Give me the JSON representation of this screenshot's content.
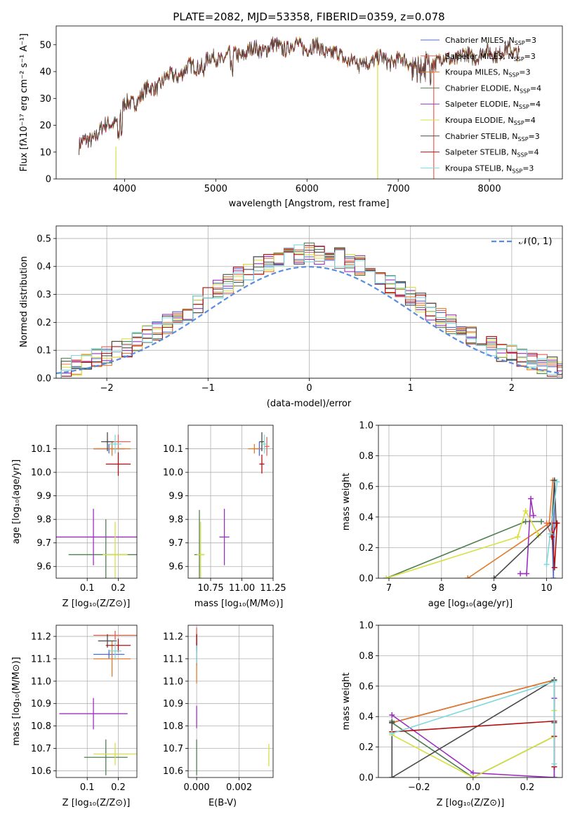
{
  "title": "PLATE=2082, MJD=53358, FIBERID=0359, z=0.078",
  "spectrum": {
    "xlabel": "wavelength [Angstrom, rest frame]",
    "ylabel": "Flux [fλ10⁻¹⁷ erg cm⁻² s⁻¹ A⁻¹]",
    "legend": [
      {
        "label": "Chabrier MILES, N_SSP=3",
        "color": "#4d6bd0"
      },
      {
        "label": "Salpeter MILES, N_SSP=3",
        "color": "#e8604f"
      },
      {
        "label": "Kroupa MILES, N_SSP=3",
        "color": "#e07b2a"
      },
      {
        "label": "Chabrier ELODIE, N_SSP=4",
        "color": "#4f7f4f"
      },
      {
        "label": "Salpeter ELODIE, N_SSP=4",
        "color": "#9b30c0"
      },
      {
        "label": "Kroupa ELODIE, N_SSP=4",
        "color": "#d7e040"
      },
      {
        "label": "Chabrier STELIB, N_SSP=3",
        "color": "#4a4a4a"
      },
      {
        "label": "Salpeter STELIB, N_SSP=4",
        "color": "#b01010"
      },
      {
        "label": "Kroupa STELIB, N_SSP=3",
        "color": "#7fd8dc"
      }
    ]
  },
  "residuals": {
    "xlabel": "(data-model)/error",
    "ylabel": "Normed distribution",
    "legend_label": "𝒩(0, 1)"
  },
  "labels": {
    "Z": "Z [log₁₀(Z/Z⊙)]",
    "age": "age  [log₁₀(age/yr)]",
    "mass": "mass [log₁₀(M/M⊙)]",
    "ebv": "E(B-V)",
    "massweight": "mass weight"
  },
  "chart_data": [
    {
      "type": "line",
      "panel": "spectrum",
      "xlim": [
        3250,
        8800
      ],
      "ylim": [
        0,
        57
      ],
      "xticks": [
        4000,
        5000,
        6000,
        7000,
        8000
      ],
      "yticks": [
        0,
        10,
        20,
        30,
        40,
        50
      ],
      "grid": false,
      "legend_position": "right",
      "continuum_knots": {
        "x": [
          3500,
          3700,
          3900,
          4000,
          4100,
          4300,
          4500,
          4700,
          5000,
          5200,
          5400,
          5600,
          5800,
          6000,
          6200,
          6400,
          6600,
          6800,
          7000,
          7200,
          7400,
          7600,
          7800,
          8000,
          8200,
          8400,
          8600,
          8800
        ],
        "y": [
          12,
          17,
          22,
          27,
          29,
          34,
          38,
          41,
          45,
          46,
          48,
          49,
          49.5,
          49.5,
          48,
          45,
          44,
          44.5,
          44,
          43.5,
          44,
          45,
          46,
          47,
          47.5,
          48,
          47,
          46
        ]
      }
    },
    {
      "type": "bar",
      "panel": "residual-histogram",
      "xlim": [
        -2.5,
        2.5
      ],
      "ylim": [
        0,
        0.545
      ],
      "xticks": [
        -2,
        -1,
        0,
        1,
        2
      ],
      "yticks": [
        0.0,
        0.1,
        0.2,
        0.3,
        0.4,
        0.5
      ],
      "grid": true,
      "bin_width": 0.1,
      "reference_curve": "standard normal pdf",
      "legend_position": "top-right"
    },
    {
      "type": "scatter",
      "panel": "age-vs-Z",
      "xlim": [
        0.0,
        0.26
      ],
      "ylim": [
        9.55,
        10.2
      ],
      "xticks": [
        0.1,
        0.2
      ],
      "yticks": [
        9.6,
        9.7,
        9.8,
        9.9,
        10.0,
        10.1
      ],
      "grid": true,
      "points": [
        {
          "x": 0.17,
          "y": 10.1,
          "xerr": 0.05,
          "yerr": 0.02,
          "color": "#4d6bd0"
        },
        {
          "x": 0.2,
          "y": 10.13,
          "xerr": 0.04,
          "yerr": 0.03,
          "color": "#e8604f"
        },
        {
          "x": 0.18,
          "y": 10.1,
          "xerr": 0.06,
          "yerr": 0.03,
          "color": "#e07b2a"
        },
        {
          "x": 0.16,
          "y": 9.65,
          "xerr": 0.12,
          "yerr": 0.15,
          "color": "#4f7f4f"
        },
        {
          "x": 0.12,
          "y": 9.725,
          "xerr": 0.14,
          "yerr": 0.12,
          "color": "#9b30c0"
        },
        {
          "x": 0.19,
          "y": 9.65,
          "xerr": 0.04,
          "yerr": 0.14,
          "color": "#d7e040"
        },
        {
          "x": 0.165,
          "y": 10.13,
          "xerr": 0.02,
          "yerr": 0.04,
          "color": "#4a4a4a"
        },
        {
          "x": 0.2,
          "y": 10.035,
          "xerr": 0.04,
          "yerr": 0.05,
          "color": "#b01010"
        },
        {
          "x": 0.19,
          "y": 10.12,
          "xerr": 0.02,
          "yerr": 0.04,
          "color": "#7fd8dc"
        }
      ]
    },
    {
      "type": "scatter",
      "panel": "age-vs-mass",
      "xlim": [
        10.57,
        11.25
      ],
      "ylim": [
        9.55,
        10.2
      ],
      "xticks": [
        10.75,
        11.0,
        11.25
      ],
      "yticks": [
        9.6,
        9.7,
        9.8,
        9.9,
        10.0,
        10.1
      ],
      "grid": true,
      "points": [
        {
          "x": 11.14,
          "y": 10.1,
          "xerr": 0.02,
          "yerr": 0.03,
          "color": "#4d6bd0"
        },
        {
          "x": 11.2,
          "y": 10.11,
          "xerr": 0.02,
          "yerr": 0.04,
          "color": "#e8604f"
        },
        {
          "x": 11.1,
          "y": 10.1,
          "xerr": 0.05,
          "yerr": 0.02,
          "color": "#e07b2a"
        },
        {
          "x": 10.66,
          "y": 9.65,
          "xerr": 0.04,
          "yerr": 0.19,
          "color": "#4f7f4f"
        },
        {
          "x": 10.86,
          "y": 9.725,
          "xerr": 0.04,
          "yerr": 0.12,
          "color": "#9b30c0"
        },
        {
          "x": 10.67,
          "y": 9.65,
          "xerr": 0.03,
          "yerr": 0.14,
          "color": "#d7e040"
        },
        {
          "x": 11.16,
          "y": 10.13,
          "xerr": 0.02,
          "yerr": 0.04,
          "color": "#4a4a4a"
        },
        {
          "x": 11.16,
          "y": 10.035,
          "xerr": 0.02,
          "yerr": 0.04,
          "color": "#b01010"
        },
        {
          "x": 11.18,
          "y": 10.12,
          "xerr": 0.02,
          "yerr": 0.04,
          "color": "#7fd8dc"
        }
      ]
    },
    {
      "type": "line",
      "panel": "massweight-vs-age",
      "xlim": [
        6.8,
        10.3
      ],
      "ylim": [
        0,
        1
      ],
      "xticks": [
        7,
        8,
        9,
        10
      ],
      "yticks": [
        0.0,
        0.2,
        0.4,
        0.6,
        0.8,
        1.0
      ],
      "grid": true,
      "series": [
        {
          "color": "#4d6bd0",
          "x": [
            10.1,
            10.13,
            10.15
          ],
          "y": [
            0.36,
            0.0,
            0.64
          ]
        },
        {
          "color": "#e8604f",
          "x": [
            10.0,
            10.1,
            10.15
          ],
          "y": [
            0.36,
            0.27,
            0.64
          ]
        },
        {
          "color": "#e07b2a",
          "x": [
            8.5,
            10.05,
            10.12
          ],
          "y": [
            0.0,
            0.36,
            0.64
          ]
        },
        {
          "color": "#4f7f4f",
          "x": [
            6.95,
            9.6,
            9.9
          ],
          "y": [
            0.0,
            0.37,
            0.37
          ]
        },
        {
          "color": "#9b30c0",
          "x": [
            9.5,
            9.62,
            9.7,
            9.75
          ],
          "y": [
            0.03,
            0.03,
            0.52,
            0.41
          ]
        },
        {
          "color": "#d7e040",
          "x": [
            6.95,
            9.45,
            9.6,
            9.85
          ],
          "y": [
            0.0,
            0.27,
            0.44,
            0.28
          ]
        },
        {
          "color": "#4a4a4a",
          "x": [
            9.0,
            10.1,
            10.15,
            10.18
          ],
          "y": [
            0.0,
            0.36,
            0.64,
            0.36
          ]
        },
        {
          "color": "#b01010",
          "x": [
            10.1,
            10.15,
            10.2,
            10.1
          ],
          "y": [
            0.36,
            0.07,
            0.36,
            0.27
          ]
        },
        {
          "color": "#7fd8dc",
          "x": [
            10.0,
            10.07,
            10.2
          ],
          "y": [
            0.09,
            0.29,
            0.63
          ]
        }
      ]
    },
    {
      "type": "scatter",
      "panel": "mass-vs-Z",
      "xlim": [
        0.0,
        0.26
      ],
      "ylim": [
        10.57,
        11.25
      ],
      "xticks": [
        0.1,
        0.2
      ],
      "yticks": [
        10.6,
        10.7,
        10.8,
        10.9,
        11.0,
        11.1,
        11.2
      ],
      "grid": true,
      "points": [
        {
          "x": 0.17,
          "y": 11.12,
          "xerr": 0.05,
          "yerr": 0.02,
          "color": "#4d6bd0"
        },
        {
          "x": 0.19,
          "y": 11.205,
          "xerr": 0.07,
          "yerr": 0.02,
          "color": "#e8604f"
        },
        {
          "x": 0.18,
          "y": 11.1,
          "xerr": 0.06,
          "yerr": 0.08,
          "color": "#e07b2a"
        },
        {
          "x": 0.16,
          "y": 10.66,
          "xerr": 0.07,
          "yerr": 0.08,
          "color": "#4f7f4f"
        },
        {
          "x": 0.12,
          "y": 10.855,
          "xerr": 0.11,
          "yerr": 0.07,
          "color": "#9b30c0"
        },
        {
          "x": 0.19,
          "y": 10.675,
          "xerr": 0.07,
          "yerr": 0.05,
          "color": "#d7e040"
        },
        {
          "x": 0.165,
          "y": 11.18,
          "xerr": 0.03,
          "yerr": 0.03,
          "color": "#4a4a4a"
        },
        {
          "x": 0.2,
          "y": 11.16,
          "xerr": 0.04,
          "yerr": 0.03,
          "color": "#b01010"
        },
        {
          "x": 0.19,
          "y": 11.135,
          "xerr": 0.02,
          "yerr": 0.04,
          "color": "#7fd8dc"
        }
      ]
    },
    {
      "type": "scatter",
      "panel": "mass-vs-ebv",
      "xlim": [
        -0.0004,
        0.0036
      ],
      "ylim": [
        10.57,
        11.25
      ],
      "xticks": [
        0.0,
        0.002
      ],
      "yticks": [
        10.6,
        10.7,
        10.8,
        10.9,
        11.0,
        11.1,
        11.2
      ],
      "grid": true,
      "points": [
        {
          "x": 0.0,
          "y": 11.12,
          "yerr": 0.05,
          "color": "#4d6bd0"
        },
        {
          "x": 0.0,
          "y": 11.2,
          "yerr": 0.04,
          "color": "#e8604f"
        },
        {
          "x": 0.0,
          "y": 11.05,
          "yerr": 0.06,
          "color": "#e07b2a"
        },
        {
          "x": 0.0,
          "y": 10.66,
          "yerr": 0.08,
          "color": "#4f7f4f"
        },
        {
          "x": 0.0,
          "y": 10.84,
          "yerr": 0.05,
          "color": "#9b30c0"
        },
        {
          "x": 0.0034,
          "y": 10.67,
          "yerr": 0.05,
          "color": "#d7e040"
        },
        {
          "x": 0.0,
          "y": 11.18,
          "yerr": 0.03,
          "color": "#4a4a4a"
        },
        {
          "x": 0.0,
          "y": 11.17,
          "yerr": 0.04,
          "color": "#b01010"
        },
        {
          "x": 0.0,
          "y": 11.12,
          "yerr": 0.04,
          "color": "#7fd8dc"
        }
      ]
    },
    {
      "type": "line",
      "panel": "massweight-vs-Z",
      "xlim": [
        -0.35,
        0.33
      ],
      "ylim": [
        0,
        1
      ],
      "xticks": [
        -0.2,
        0.0,
        0.2
      ],
      "yticks": [
        0.0,
        0.2,
        0.4,
        0.6,
        0.8,
        1.0
      ],
      "grid": true,
      "series": [
        {
          "color": "#4d6bd0",
          "x": [
            -0.3,
            0.3,
            0.3
          ],
          "y": [
            0.36,
            0.64,
            0.0
          ]
        },
        {
          "color": "#e8604f",
          "x": [
            -0.3,
            0.3,
            0.3
          ],
          "y": [
            0.36,
            0.64,
            0.27
          ]
        },
        {
          "color": "#e07b2a",
          "x": [
            -0.3,
            0.3
          ],
          "y": [
            0.36,
            0.64
          ]
        },
        {
          "color": "#4f7f4f",
          "x": [
            -0.3,
            -0.3,
            0.0,
            0.3
          ],
          "y": [
            0.37,
            0.36,
            0.0,
            0.27
          ]
        },
        {
          "color": "#9b30c0",
          "x": [
            0.3,
            0.3,
            0.0,
            -0.3
          ],
          "y": [
            0.52,
            0.0,
            0.03,
            0.41
          ]
        },
        {
          "color": "#d7e040",
          "x": [
            -0.3,
            0.0,
            0.3,
            0.3
          ],
          "y": [
            0.28,
            0.0,
            0.27,
            0.44
          ]
        },
        {
          "color": "#4a4a4a",
          "x": [
            -0.3,
            -0.3,
            0.3,
            0.3
          ],
          "y": [
            0.36,
            0.0,
            0.64,
            0.36
          ]
        },
        {
          "color": "#b01010",
          "x": [
            -0.3,
            0.3,
            0.3,
            0.3
          ],
          "y": [
            0.3,
            0.37,
            0.07,
            0.27
          ]
        },
        {
          "color": "#7fd8dc",
          "x": [
            -0.3,
            0.3,
            0.3
          ],
          "y": [
            0.29,
            0.63,
            0.09
          ]
        }
      ]
    }
  ]
}
